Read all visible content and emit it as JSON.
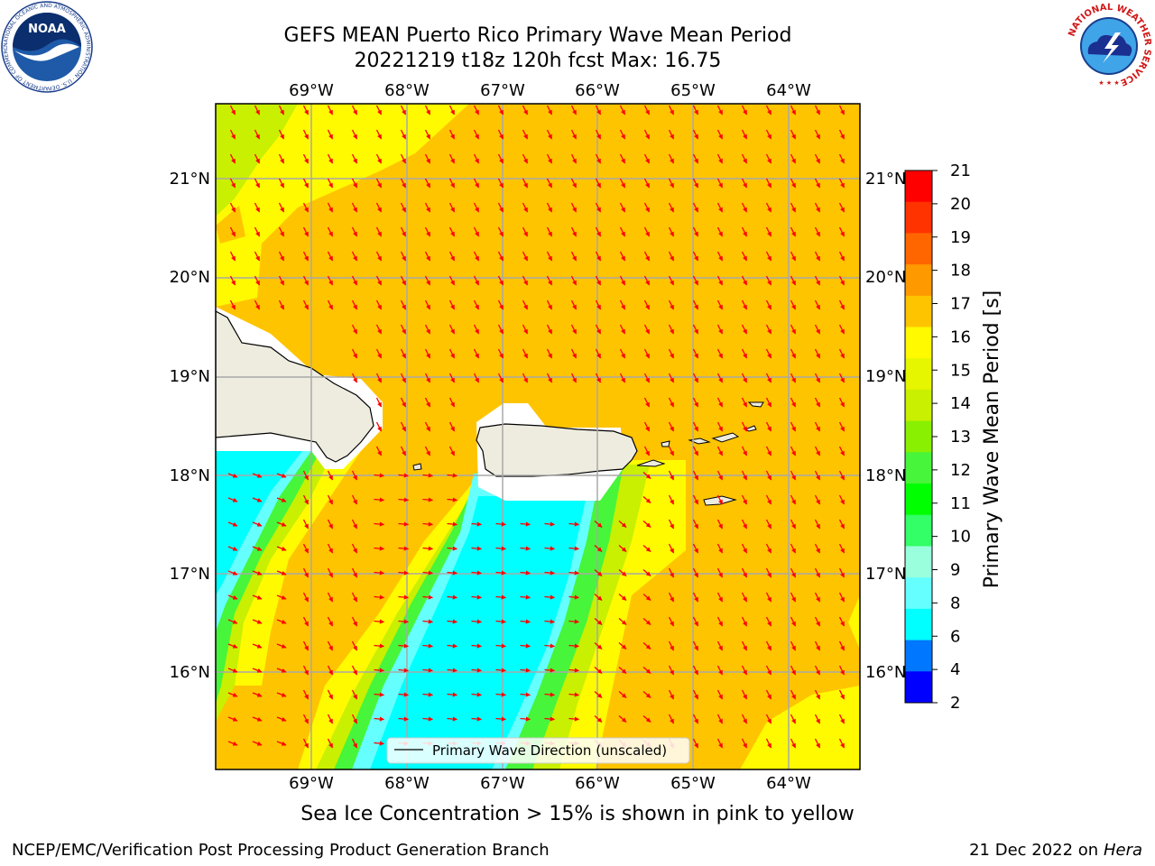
{
  "title": {
    "line1": "GEFS MEAN Puerto Rico Primary Wave Mean Period",
    "line2": "20221219 t18z 120h fcst   Max: 16.75"
  },
  "map": {
    "lon_labels": [
      "69°W",
      "68°W",
      "67°W",
      "66°W",
      "65°W",
      "64°W"
    ],
    "lat_labels": [
      "21°N",
      "20°N",
      "19°N",
      "18°N",
      "17°N",
      "16°N"
    ],
    "legend_label": "Primary Wave Direction (unscaled)",
    "colors": {
      "ocean_orange": "#ffc400",
      "band_yellow": "#fffa00",
      "band_yellowgreen": "#c8f000",
      "band_green": "#47f53a",
      "band_cyan": "#00ffff",
      "band_lightcyan": "#66ffff",
      "land": "#eeecdf",
      "arrow": "#ff0000"
    }
  },
  "colorbar": {
    "ticks": [
      "21",
      "20",
      "19",
      "18",
      "17",
      "16",
      "15",
      "14",
      "13",
      "12",
      "11",
      "10",
      "9",
      "8",
      "6",
      "4",
      "2"
    ],
    "colors": [
      "#ff0000",
      "#ff3300",
      "#ff6600",
      "#ff9900",
      "#ffc400",
      "#fffa00",
      "#e6f500",
      "#c8f000",
      "#88f000",
      "#47f53a",
      "#00ff00",
      "#33ff66",
      "#99ffdd",
      "#66ffff",
      "#00ffff",
      "#0077ff",
      "#0000ff"
    ],
    "label": "Primary Wave Mean Period [s]"
  },
  "caption": "Sea Ice Concentration > 15% is shown in pink to yellow",
  "footer": {
    "left": "NCEP/EMC/Verification Post Processing Product Generation Branch",
    "right_date": "21 Dec 2022 on",
    "right_host": "Hera"
  },
  "logos": {
    "noaa_text": "NOAA",
    "noaa_ring": "NATIONAL OCEANIC AND ATMOSPHERIC ADMINISTRATION · U.S. DEPARTMENT OF COMMERCE",
    "nws_ring": "NATIONAL WEATHER SERVICE"
  }
}
